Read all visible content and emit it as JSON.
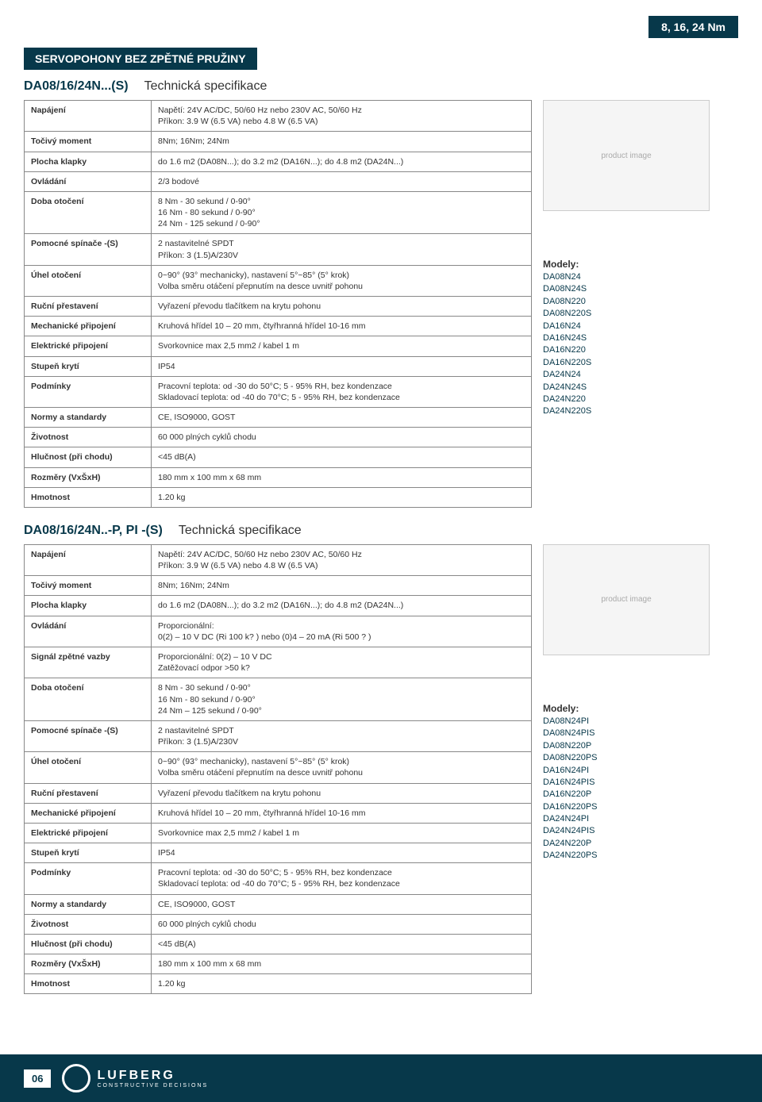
{
  "badge": "8, 16, 24 Nm",
  "header": "SERVOPOHONY BEZ ZPĚTNÉ PRUŽINY",
  "section1": {
    "code": "DA08/16/24N...(S)",
    "label": "Technická specifikace",
    "rows": [
      {
        "k": "Napájení",
        "v": "Napětí: 24V AC/DC, 50/60 Hz nebo 230V AC, 50/60 Hz\nPříkon: 3.9 W (6.5 VA) nebo 4.8 W (6.5 VA)"
      },
      {
        "k": "Točivý moment",
        "v": "8Nm; 16Nm; 24Nm"
      },
      {
        "k": "Plocha klapky",
        "v": "do 1.6 m2 (DA08N...); do 3.2 m2 (DA16N...); do 4.8 m2 (DA24N...)"
      },
      {
        "k": "Ovládání",
        "v": "2/3 bodové"
      },
      {
        "k": "Doba otočení",
        "v": "8 Nm - 30 sekund / 0-90°\n16 Nm - 80 sekund / 0-90°\n24 Nm - 125 sekund / 0-90°"
      },
      {
        "k": "Pomocné spínače -(S)",
        "v": "2 nastavitelné SPDT\nPříkon: 3 (1.5)A/230V"
      },
      {
        "k": "Úhel otočení",
        "v": "0~90° (93° mechanicky), nastavení 5°~85° (5° krok)\nVolba směru otáčení přepnutím na desce uvnitř pohonu"
      },
      {
        "k": "Ruční přestavení",
        "v": "Vyřazení převodu tlačítkem na krytu pohonu"
      },
      {
        "k": "Mechanické připojení",
        "v": "Kruhová hřídel 10 – 20 mm, čtyřhranná hřídel 10-16 mm"
      },
      {
        "k": "Elektrické připojení",
        "v": "Svorkovnice max 2,5 mm2 / kabel 1 m"
      },
      {
        "k": "Stupeň krytí",
        "v": "IP54"
      },
      {
        "k": "Podmínky",
        "v": "Pracovní teplota: od -30 do 50°C; 5 - 95% RH, bez kondenzace\nSkladovací teplota: od -40 do 70°C; 5 - 95% RH, bez kondenzace"
      },
      {
        "k": "Normy a standardy",
        "v": "CE, ISO9000, GOST"
      },
      {
        "k": "Životnost",
        "v": "60 000 plných cyklů chodu"
      },
      {
        "k": "Hlučnost (při chodu)",
        "v": "<45 dB(A)"
      },
      {
        "k": "Rozměry (VxŠxH)",
        "v": "180 mm x 100 mm x 68 mm"
      },
      {
        "k": "Hmotnost",
        "v": "1.20 kg"
      }
    ],
    "models_label": "Modely:",
    "models": [
      "DA08N24",
      "DA08N24S",
      "DA08N220",
      "DA08N220S",
      "DA16N24",
      "DA16N24S",
      "DA16N220",
      "DA16N220S",
      "DA24N24",
      "DA24N24S",
      "DA24N220",
      "DA24N220S"
    ]
  },
  "section2": {
    "code": "DA08/16/24N..-P, PI -(S)",
    "label": "Technická specifikace",
    "rows": [
      {
        "k": "Napájení",
        "v": "Napětí: 24V AC/DC, 50/60 Hz nebo 230V AC, 50/60 Hz\nPříkon: 3.9 W (6.5 VA) nebo 4.8 W (6.5 VA)"
      },
      {
        "k": "Točivý moment",
        "v": "8Nm; 16Nm; 24Nm"
      },
      {
        "k": "Plocha klapky",
        "v": "do 1.6 m2 (DA08N...); do 3.2 m2 (DA16N...); do 4.8 m2 (DA24N...)"
      },
      {
        "k": "Ovládání",
        "v": "Proporcionální:\n0(2) – 10 V DC (Ri 100 k? ) nebo (0)4 – 20 mA (Ri 500 ? )"
      },
      {
        "k": "Signál zpětné vazby",
        "v": "Proporcionální: 0(2) – 10 V DC\nZatěžovací odpor >50 k?"
      },
      {
        "k": "Doba otočení",
        "v": "8 Nm - 30 sekund / 0-90°\n16 Nm - 80 sekund / 0-90°\n24 Nm – 125 sekund / 0-90°"
      },
      {
        "k": "Pomocné spínače -(S)",
        "v": "2 nastavitelné SPDT\nPříkon: 3 (1.5)A/230V"
      },
      {
        "k": "Úhel otočení",
        "v": "0~90° (93° mechanicky), nastavení 5°~85° (5° krok)\nVolba směru otáčení přepnutím na desce uvnitř pohonu"
      },
      {
        "k": "Ruční přestavení",
        "v": "Vyřazení převodu tlačítkem na krytu pohonu"
      },
      {
        "k": "Mechanické připojení",
        "v": "Kruhová hřídel 10 – 20 mm, čtyřhranná hřídel 10-16 mm"
      },
      {
        "k": "Elektrické připojení",
        "v": "Svorkovnice max 2,5 mm2 / kabel 1 m"
      },
      {
        "k": "Stupeň krytí",
        "v": "IP54"
      },
      {
        "k": "Podmínky",
        "v": "Pracovní teplota: od -30 do 50°C; 5 - 95% RH, bez kondenzace\nSkladovací teplota: od -40 do 70°C; 5 - 95% RH, bez kondenzace"
      },
      {
        "k": "Normy a standardy",
        "v": "CE, ISO9000, GOST"
      },
      {
        "k": "Životnost",
        "v": "60 000 plných cyklů chodu"
      },
      {
        "k": "Hlučnost (při chodu)",
        "v": "<45 dB(A)"
      },
      {
        "k": "Rozměry (VxŠxH)",
        "v": "180 mm x 100 mm x 68 mm"
      },
      {
        "k": "Hmotnost",
        "v": "1.20 kg"
      }
    ],
    "models_label": "Modely:",
    "models": [
      "DA08N24PI",
      "DA08N24PIS",
      "DA08N220P",
      "DA08N220PS",
      "DA16N24PI",
      "DA16N24PIS",
      "DA16N220P",
      "DA16N220PS",
      "DA24N24PI",
      "DA24N24PIS",
      "DA24N220P",
      "DA24N220PS"
    ]
  },
  "footer": {
    "page": "06",
    "logo_main": "LUFBERG",
    "logo_sub": "CONSTRUCTIVE DECISIONS"
  },
  "img_placeholder": "product image"
}
